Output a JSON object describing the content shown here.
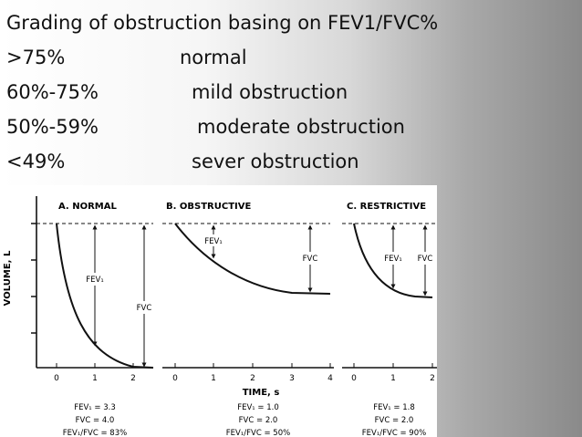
{
  "slide": {
    "title": "Grading of obstruction basing on FEV1/FVC%",
    "grades": [
      {
        "range": " >75%",
        "label": "normal"
      },
      {
        "range": "60%-75%",
        "label": "mild obstruction"
      },
      {
        "range": "50%-59%",
        "label": "moderate obstruction"
      },
      {
        "range": "<49%",
        "label": "sever obstruction"
      }
    ]
  },
  "figure": {
    "ylabel": "VOLUME, L",
    "xlabel": "TIME, s",
    "panels": [
      {
        "title": "A. NORMAL",
        "fev1_tag": "FEV₁",
        "fvc_tag": "FVC",
        "ticks": [
          "0",
          "1",
          "2"
        ],
        "stats": {
          "fev1": "FEV₁  =  3.3",
          "fvc": "FVC  =  4.0",
          "ratio": "FEV₁/FVC  =  83%"
        }
      },
      {
        "title": "B. OBSTRUCTIVE",
        "fev1_tag": "FEV₁",
        "fvc_tag": "FVC",
        "ticks": [
          "0",
          "1",
          "2",
          "3",
          "4"
        ],
        "stats": {
          "fev1": "FEV₁  =  1.0",
          "fvc": "FVC  =  2.0",
          "ratio": "FEV₁/FVC  =  50%"
        }
      },
      {
        "title": "C. RESTRICTIVE",
        "fev1_tag": "FEV₁",
        "fvc_tag": "FVC",
        "ticks": [
          "0",
          "1",
          "2"
        ],
        "stats": {
          "fev1": "FEV₁  =  1.8",
          "fvc": "FVC  =  2.0",
          "ratio": "FEV₁/FVC  =  90%"
        }
      }
    ]
  }
}
